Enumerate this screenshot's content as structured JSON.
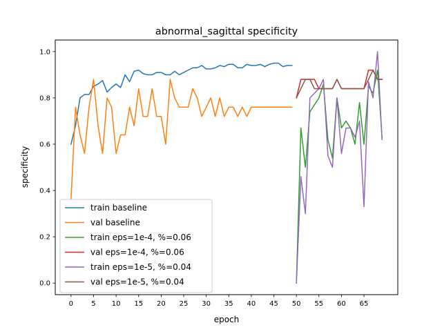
{
  "chart_data": {
    "type": "line",
    "title": "abnormal_sagittal specificity",
    "xlabel": "epoch",
    "ylabel": "specificity",
    "xlim": [
      -3.5,
      72.5
    ],
    "ylim": [
      -0.05,
      1.05
    ],
    "xticks": [
      0,
      5,
      10,
      15,
      20,
      25,
      30,
      35,
      40,
      45,
      50,
      55,
      60,
      65
    ],
    "xtick_labels": [
      "0",
      "5",
      "10",
      "15",
      "20",
      "25",
      "30",
      "35",
      "40",
      "45",
      "50",
      "55",
      "60",
      "65"
    ],
    "yticks": [
      0.0,
      0.2,
      0.4,
      0.6,
      0.8,
      1.0
    ],
    "ytick_labels": [
      "0.0",
      "0.2",
      "0.4",
      "0.6",
      "0.8",
      "1.0"
    ],
    "grid": false,
    "legend_position": "lower-left",
    "series": [
      {
        "name": "train baseline",
        "color": "#1f77b4",
        "x": [
          0,
          1,
          2,
          3,
          4,
          5,
          6,
          7,
          8,
          9,
          10,
          11,
          12,
          13,
          14,
          15,
          16,
          17,
          18,
          19,
          20,
          21,
          22,
          23,
          24,
          25,
          26,
          27,
          28,
          29,
          30,
          31,
          32,
          33,
          34,
          35,
          36,
          37,
          38,
          39,
          40,
          41,
          42,
          43,
          44,
          45,
          46,
          47,
          48,
          49
        ],
        "values": [
          0.6,
          0.68,
          0.8,
          0.815,
          0.815,
          0.85,
          0.86,
          0.875,
          0.825,
          0.845,
          0.86,
          0.845,
          0.9,
          0.87,
          0.915,
          0.92,
          0.905,
          0.9,
          0.9,
          0.91,
          0.91,
          0.9,
          0.9,
          0.915,
          0.9,
          0.91,
          0.92,
          0.93,
          0.93,
          0.94,
          0.925,
          0.925,
          0.93,
          0.94,
          0.935,
          0.945,
          0.945,
          0.93,
          0.93,
          0.945,
          0.94,
          0.94,
          0.945,
          0.935,
          0.945,
          0.95,
          0.95,
          0.935,
          0.94,
          0.94
        ]
      },
      {
        "name": "val baseline",
        "color": "#ff7f0e",
        "x": [
          0,
          1,
          2,
          3,
          4,
          5,
          6,
          7,
          8,
          9,
          10,
          11,
          12,
          13,
          14,
          15,
          16,
          17,
          18,
          19,
          20,
          21,
          22,
          23,
          24,
          25,
          26,
          27,
          28,
          29,
          30,
          31,
          32,
          33,
          34,
          35,
          36,
          37,
          38,
          39,
          40,
          41,
          42,
          43,
          44,
          45,
          46,
          47,
          48,
          49
        ],
        "values": [
          0.36,
          0.76,
          0.64,
          0.56,
          0.76,
          0.88,
          0.68,
          0.56,
          0.8,
          0.76,
          0.56,
          0.64,
          0.64,
          0.76,
          0.68,
          0.84,
          0.72,
          0.72,
          0.84,
          0.72,
          0.72,
          0.6,
          0.88,
          0.8,
          0.76,
          0.76,
          0.76,
          0.84,
          0.8,
          0.72,
          0.76,
          0.8,
          0.72,
          0.8,
          0.72,
          0.76,
          0.76,
          0.72,
          0.76,
          0.72,
          0.76,
          0.76,
          0.76,
          0.76,
          0.76,
          0.76,
          0.76,
          0.76,
          0.76,
          0.76
        ]
      },
      {
        "name": "train eps=1e-4, %=0.06",
        "color": "#2ca02c",
        "x": [
          50,
          51,
          52,
          53,
          54,
          55,
          56,
          57,
          58,
          59,
          60,
          61,
          62,
          63,
          64,
          65,
          66,
          67,
          68,
          69
        ],
        "values": [
          0.0,
          0.67,
          0.5,
          0.74,
          0.77,
          0.8,
          0.86,
          0.62,
          0.54,
          0.8,
          0.67,
          0.7,
          0.67,
          0.6,
          0.78,
          0.6,
          0.85,
          0.82,
          0.92,
          0.63
        ]
      },
      {
        "name": "val eps=1e-4, %=0.06",
        "color": "#d62728",
        "x": [
          50,
          51,
          52,
          53,
          54,
          55,
          56,
          57,
          58,
          59,
          60,
          61,
          62,
          63,
          64,
          65,
          66,
          67,
          68,
          69
        ],
        "values": [
          0.8,
          0.88,
          0.88,
          0.88,
          0.88,
          0.84,
          0.84,
          0.84,
          0.84,
          0.88,
          0.84,
          0.84,
          0.84,
          0.84,
          0.84,
          0.84,
          0.92,
          0.92,
          0.88,
          0.88
        ]
      },
      {
        "name": "train eps=1e-5, %=0.04",
        "color": "#9467bd",
        "x": [
          50,
          51,
          52,
          53,
          54,
          55,
          56,
          57,
          58,
          59,
          60,
          61,
          62,
          63,
          64,
          65,
          66,
          67,
          68,
          69
        ],
        "values": [
          0.0,
          0.46,
          0.3,
          0.8,
          0.82,
          0.84,
          0.88,
          0.55,
          0.5,
          0.8,
          0.56,
          0.67,
          0.67,
          0.63,
          0.7,
          0.33,
          0.87,
          0.8,
          1.0,
          0.62
        ]
      },
      {
        "name": "val eps=1e-5, %=0.04",
        "color": "#8c564b",
        "x": [
          50,
          51,
          52,
          53,
          54,
          55,
          56,
          57,
          58,
          59,
          60,
          61,
          62,
          63,
          64,
          65,
          66,
          67,
          68,
          69
        ],
        "values": [
          0.8,
          0.84,
          0.88,
          0.88,
          0.84,
          0.84,
          0.84,
          0.84,
          0.84,
          0.88,
          0.84,
          0.84,
          0.84,
          0.84,
          0.84,
          0.84,
          0.88,
          0.92,
          0.88,
          0.88
        ]
      }
    ]
  }
}
